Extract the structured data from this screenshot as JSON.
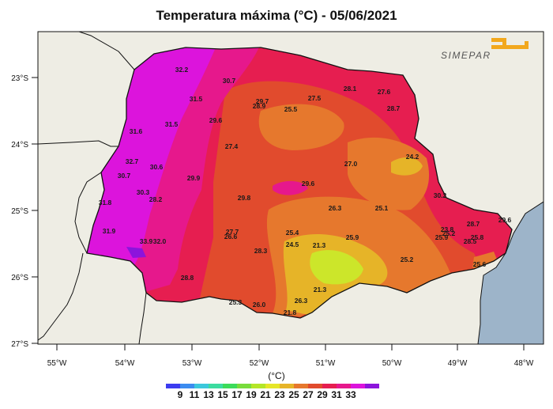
{
  "title": "Temperatura máxima (°C) - 05/06/2021",
  "logo_text": "SIMEPAR",
  "y_ticks": [
    "23°S",
    "24°S",
    "25°S",
    "26°S",
    "27°S"
  ],
  "x_ticks": [
    "55°W",
    "54°W",
    "53°W",
    "52°W",
    "51°W",
    "50°W",
    "49°W",
    "48°W"
  ],
  "legend": {
    "unit": "(°C)",
    "ticks": [
      "9",
      "11",
      "13",
      "15",
      "17",
      "19",
      "21",
      "23",
      "25",
      "27",
      "29",
      "31",
      "33"
    ],
    "colors": [
      "#3c3cf0",
      "#3c8cf0",
      "#3cc8dc",
      "#3cdca0",
      "#3cdc5a",
      "#78dc3c",
      "#b4e628",
      "#e6e628",
      "#e6b428",
      "#e6782d",
      "#e14b2d",
      "#e61e50",
      "#e6188c",
      "#dc14dc",
      "#8c14dc"
    ]
  },
  "colors": {
    "land": "#eeede4",
    "ocean": "#9db4c9",
    "state_base": "#e61e50",
    "hot_magenta": "#e6188c",
    "hotter_pink": "#dc14dc",
    "mid_orange": "#e6782d",
    "warm_red": "#e14b2d",
    "light_orange": "#e6b428",
    "yellow_green": "#cce62a"
  },
  "stations": [
    {
      "value": "32.2"
    },
    {
      "value": "30.7"
    },
    {
      "value": "31.5"
    },
    {
      "value": "29.6"
    },
    {
      "value": "31.6"
    },
    {
      "value": "31.5"
    },
    {
      "value": "32.7"
    },
    {
      "value": "30.6"
    },
    {
      "value": "30.7"
    },
    {
      "value": "29.9"
    },
    {
      "value": "30.3"
    },
    {
      "value": "28.2"
    },
    {
      "value": "31.8"
    },
    {
      "value": "31.9"
    },
    {
      "value": "33.9"
    },
    {
      "value": "32.0"
    },
    {
      "value": "28.8"
    },
    {
      "value": "27.4"
    },
    {
      "value": "29.8"
    },
    {
      "value": "27.7"
    },
    {
      "value": "26.6"
    },
    {
      "value": "28.3"
    },
    {
      "value": "25.3"
    },
    {
      "value": "26.0"
    },
    {
      "value": "29.7"
    },
    {
      "value": "28.9"
    },
    {
      "value": "25.5"
    },
    {
      "value": "27.5"
    },
    {
      "value": "28.1"
    },
    {
      "value": "27.6"
    },
    {
      "value": "28.7"
    },
    {
      "value": "27.0"
    },
    {
      "value": "24.2"
    },
    {
      "value": "29.6"
    },
    {
      "value": "26.3"
    },
    {
      "value": "25.1"
    },
    {
      "value": "30.2"
    },
    {
      "value": "25.4"
    },
    {
      "value": "24.5"
    },
    {
      "value": "21.3"
    },
    {
      "value": "25.9"
    },
    {
      "value": "21.3"
    },
    {
      "value": "26.3"
    },
    {
      "value": "21.8"
    },
    {
      "value": "25.2"
    },
    {
      "value": "28.7"
    },
    {
      "value": "23.8"
    },
    {
      "value": "25.8"
    },
    {
      "value": "25.2"
    },
    {
      "value": "25.9"
    },
    {
      "value": "28.5"
    },
    {
      "value": "29.6"
    },
    {
      "value": "25.6"
    }
  ]
}
